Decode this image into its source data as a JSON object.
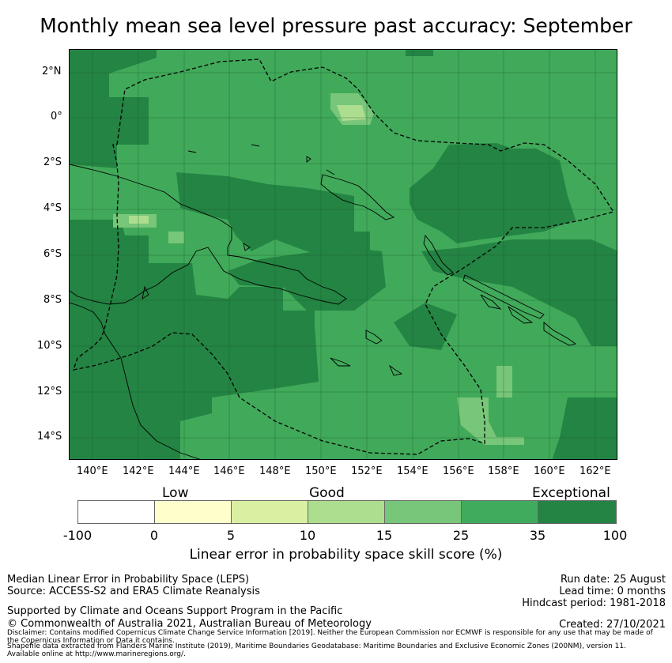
{
  "title": "Monthly mean sea level pressure past accuracy: September",
  "map": {
    "lat_labels": [
      "2°N",
      "0°",
      "2°S",
      "4°S",
      "6°S",
      "8°S",
      "10°S",
      "12°S",
      "14°S"
    ],
    "lon_labels": [
      "140°E",
      "142°E",
      "144°E",
      "146°E",
      "148°E",
      "150°E",
      "152°E",
      "154°E",
      "156°E",
      "158°E",
      "160°E",
      "162°E"
    ],
    "colors": {
      "background": "#41a95a",
      "dark": "#238443",
      "medium_light": "#78c679",
      "light": "#addd8e"
    }
  },
  "colorbar": {
    "categories": [
      "Low",
      "Good",
      "Exceptional"
    ],
    "ticks": [
      "-100",
      "0",
      "5",
      "10",
      "15",
      "25",
      "35",
      "100"
    ],
    "colors": [
      "#ffffff",
      "#ffffcc",
      "#d9f0a3",
      "#addd8e",
      "#78c679",
      "#41ab5d",
      "#238443"
    ],
    "label": "Linear error in probability space skill score (%)"
  },
  "footer": {
    "left_line1": "Median Linear Error in Probability Space (LEPS)",
    "left_line2": "Source: ACCESS-S2 and ERA5 Climate Reanalysis",
    "support": "Supported by Climate and Oceans Support Program in the Pacific",
    "copyright": "© Commonwealth of Australia 2021, Australian Bureau of Meteorology",
    "run_date": "Run date: 25 August",
    "lead_time": "Lead time: 0 months",
    "hindcast": "Hindcast period: 1981-2018",
    "created": "Created: 27/10/2021",
    "disclaimer1": "Disclaimer: Contains modified Copernicus Climate Change Service Information [2019]. Neither the European Commission nor ECMWF is responsible for any use that may be made of",
    "disclaimer2": "the Copernicus Information or Data it contains.",
    "shapefile1": "Shapefile data extracted from Flanders Marine Institute (2019), Maritime Boundaries Geodatabase: Maritime Boundaries and Exclusive Economic Zones (200NM), version 11.",
    "shapefile2": "Available online at http://www.marineregions.org/."
  }
}
